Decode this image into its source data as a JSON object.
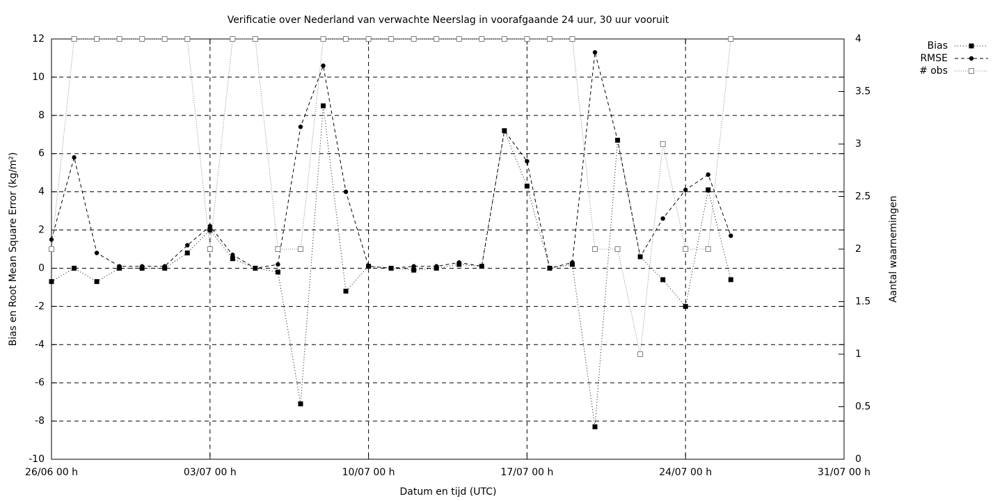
{
  "chart_data": {
    "type": "line",
    "title": "Verificatie over Nederland van verwachte Neerslag in voorafgaande 24 uur, 30 uur vooruit",
    "xlabel": "Datum en tijd (UTC)",
    "ylabel": "Bias en Root Mean Square Error (kg/m²)",
    "y2label": "Aantal waarnemingen",
    "x": [
      "26/06 00 h",
      "27/06 00 h",
      "28/06 00 h",
      "29/06 00 h",
      "30/06 00 h",
      "01/07 00 h",
      "02/07 00 h",
      "03/07 00 h",
      "04/07 00 h",
      "05/07 00 h",
      "06/07 00 h",
      "07/07 00 h",
      "08/07 00 h",
      "09/07 00 h",
      "10/07 00 h",
      "11/07 00 h",
      "12/07 00 h",
      "13/07 00 h",
      "14/07 00 h",
      "15/07 00 h",
      "16/07 00 h",
      "17/07 00 h",
      "18/07 00 h",
      "19/07 00 h",
      "20/07 00 h",
      "21/07 00 h",
      "22/07 00 h",
      "23/07 00 h",
      "24/07 00 h",
      "25/07 00 h",
      "26/07 00 h"
    ],
    "series": [
      {
        "name": "Bias",
        "color": "#000000",
        "dash": "1,3",
        "marker": "square",
        "values": [
          -0.7,
          0,
          -0.7,
          0,
          0,
          0,
          0.8,
          2.0,
          0.5,
          0,
          -0.2,
          -7.1,
          8.5,
          -1.2,
          0.1,
          0,
          -0.1,
          0,
          0.2,
          0.1,
          7.2,
          4.3,
          0,
          0.2,
          -8.3,
          6.7,
          0.6,
          -0.6,
          -2.0,
          4.1,
          -0.6
        ]
      },
      {
        "name": "RMSE",
        "color": "#000000",
        "dash": "5,4",
        "marker": "circle",
        "values": [
          1.5,
          5.8,
          0.8,
          0.1,
          0.1,
          0.1,
          1.2,
          2.2,
          0.7,
          0,
          0.2,
          7.4,
          10.6,
          4.0,
          0.1,
          0,
          0.1,
          0.1,
          0.3,
          0.1,
          7.2,
          5.6,
          0,
          0.3,
          11.3,
          6.7,
          0.6,
          2.6,
          4.1,
          4.9,
          1.7
        ]
      },
      {
        "name": "# obs",
        "color": "#808080",
        "dash": "1,2",
        "marker": "open-square",
        "axis": "y2",
        "values": [
          2,
          4,
          4,
          4,
          4,
          4,
          4,
          2,
          4,
          4,
          2,
          2,
          4,
          4,
          4,
          4,
          4,
          4,
          4,
          4,
          4,
          4,
          4,
          4,
          2,
          2,
          1,
          3,
          2,
          2,
          4
        ]
      }
    ],
    "xlim": [
      "26/06 00 h",
      "31/07 00 h"
    ],
    "xticks": [
      "26/06 00 h",
      "03/07 00 h",
      "10/07 00 h",
      "17/07 00 h",
      "24/07 00 h",
      "31/07 00 h"
    ],
    "ylim": [
      -10,
      12
    ],
    "yticks": [
      -10,
      -8,
      -6,
      -4,
      -2,
      0,
      2,
      4,
      6,
      8,
      10,
      12
    ],
    "y2lim": [
      0,
      4
    ],
    "y2ticks": [
      0,
      0.5,
      1,
      1.5,
      2,
      2.5,
      3,
      3.5,
      4
    ],
    "grid": true,
    "legend": "top-right-outside"
  }
}
